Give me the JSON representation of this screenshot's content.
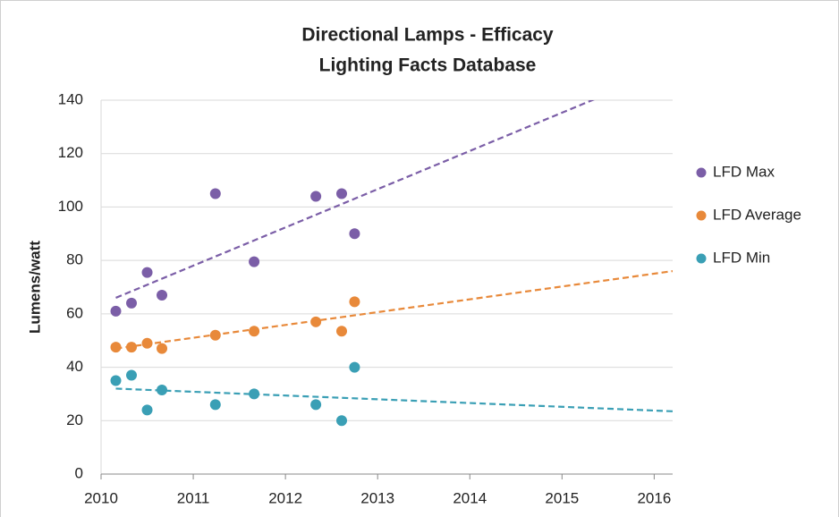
{
  "chart_data": {
    "type": "scatter",
    "title": [
      "Directional Lamps - Efficacy",
      "Lighting Facts Database"
    ],
    "ylabel": "Lumens/watt",
    "xlim": [
      2010,
      2016.2
    ],
    "xticks": [
      2010,
      2011,
      2012,
      2013,
      2014,
      2015,
      2016
    ],
    "ylim": [
      0,
      140
    ],
    "yticks": [
      0,
      20,
      40,
      60,
      80,
      100,
      120,
      140
    ],
    "grid": true,
    "legend": "right",
    "series": [
      {
        "name": "LFD Max",
        "color": "#7b5ea7",
        "x": [
          2010.16,
          2010.33,
          2010.5,
          2010.66,
          2011.24,
          2011.66,
          2012.33,
          2012.61,
          2012.75
        ],
        "values": [
          61,
          64,
          75.5,
          67,
          105,
          79.5,
          104,
          105,
          90
        ],
        "trend": [
          [
            2010.16,
            66
          ],
          [
            2016.2,
            152.5
          ]
        ]
      },
      {
        "name": "LFD Average",
        "color": "#e8893a",
        "x": [
          2010.16,
          2010.33,
          2010.5,
          2010.66,
          2011.24,
          2011.66,
          2012.33,
          2012.61,
          2012.75
        ],
        "values": [
          47.5,
          47.5,
          49,
          47,
          52,
          53.5,
          57,
          53.5,
          64.5
        ],
        "trend": [
          [
            2010.16,
            47
          ],
          [
            2016.2,
            76
          ]
        ]
      },
      {
        "name": "LFD Min",
        "color": "#3a9fb5",
        "x": [
          2010.16,
          2010.33,
          2010.5,
          2010.66,
          2011.24,
          2011.66,
          2012.33,
          2012.61,
          2012.75
        ],
        "values": [
          35,
          37,
          24,
          31.5,
          26,
          30,
          26,
          20,
          40
        ],
        "trend": [
          [
            2010.16,
            32
          ],
          [
            2016.2,
            23.5
          ]
        ]
      }
    ]
  }
}
